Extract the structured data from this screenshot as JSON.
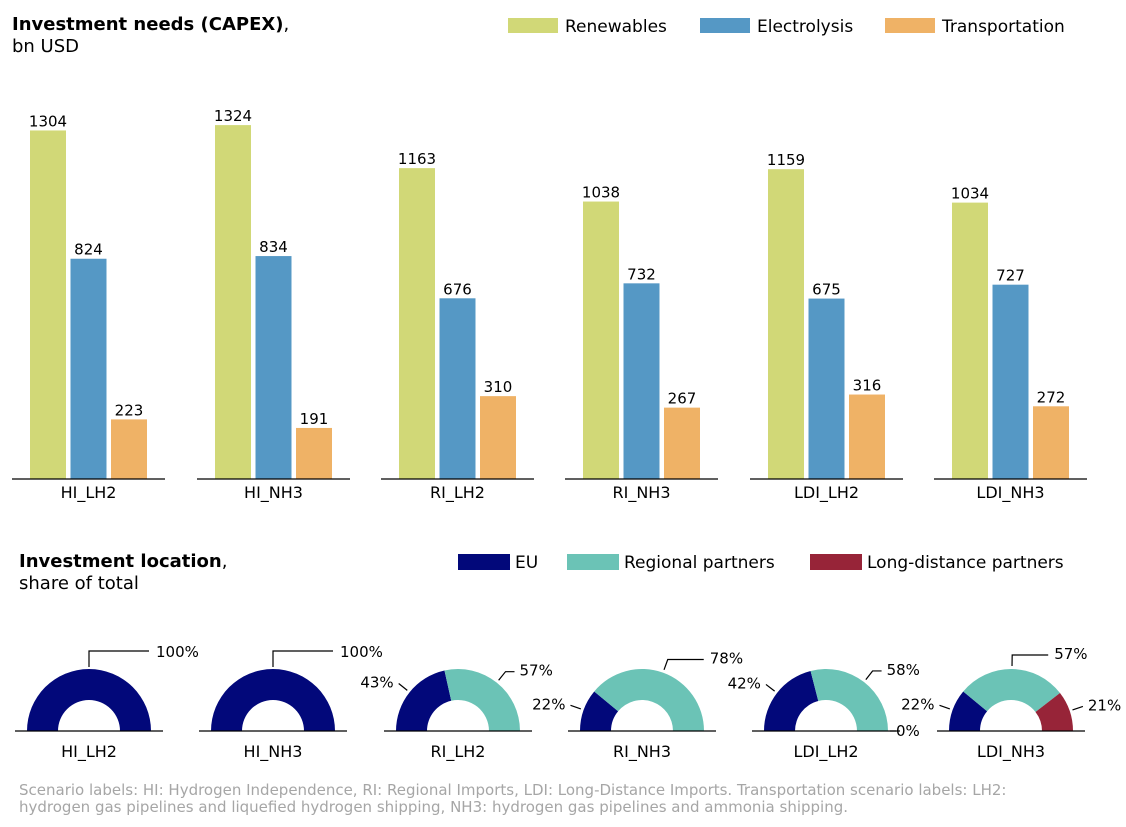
{
  "colors": {
    "renewables": "#d1d877",
    "electrolysis": "#5598c5",
    "transportation": "#efb266",
    "eu": "#02087a",
    "regional": "#6bc3b6",
    "long_distance": "#972438",
    "footnote": "#a6a6a6"
  },
  "chart_data": [
    {
      "type": "bar",
      "title": "Investment needs (CAPEX)",
      "subtitle": "bn USD",
      "categories": [
        "HI_LH2",
        "HI_NH3",
        "RI_LH2",
        "RI_NH3",
        "LDI_LH2",
        "LDI_NH3"
      ],
      "series": [
        {
          "name": "Renewables",
          "values": [
            1304,
            1324,
            1163,
            1038,
            1159,
            1034
          ]
        },
        {
          "name": "Electrolysis",
          "values": [
            824,
            834,
            676,
            732,
            675,
            727
          ]
        },
        {
          "name": "Transportation",
          "values": [
            223,
            191,
            310,
            267,
            316,
            272
          ]
        }
      ],
      "ylim": [
        0,
        1400
      ],
      "legend": "top-right",
      "grid": false
    },
    {
      "type": "pie",
      "variant": "half-donut",
      "title": "Investment location",
      "subtitle": "share of total",
      "categories": [
        "HI_LH2",
        "HI_NH3",
        "RI_LH2",
        "RI_NH3",
        "LDI_LH2",
        "LDI_NH3"
      ],
      "series": [
        {
          "name": "EU",
          "values": [
            100,
            100,
            43,
            22,
            42,
            22
          ]
        },
        {
          "name": "Regional partners",
          "values": [
            0,
            0,
            57,
            78,
            58,
            57
          ]
        },
        {
          "name": "Long-distance partners",
          "values": [
            0,
            0,
            0,
            0,
            0,
            21
          ]
        }
      ],
      "labels": [
        [
          "100%"
        ],
        [
          "100%"
        ],
        [
          "43%",
          "57%"
        ],
        [
          "22%",
          "78%"
        ],
        [
          "42%",
          "58%",
          "0%"
        ],
        [
          "22%",
          "57%",
          "21%"
        ]
      ],
      "legend": "top-right"
    }
  ],
  "footnote": {
    "line1": "Scenario labels: HI: Hydrogen Independence, RI: Regional Imports, LDI: Long-Distance Imports. Transportation scenario labels: LH2:",
    "line2": "hydrogen gas pipelines and liquefied hydrogen shipping, NH3: hydrogen gas pipelines and ammonia shipping."
  }
}
